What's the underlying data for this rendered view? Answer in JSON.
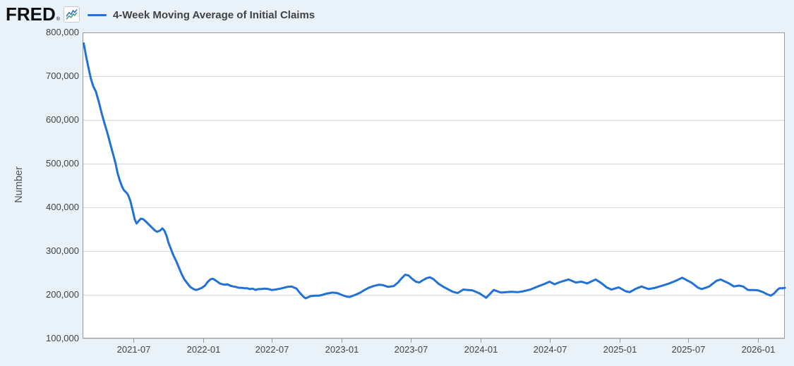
{
  "header": {
    "logo_text": "FRED",
    "registered_mark": "®",
    "logo_icon": "fred-sparkline-icon"
  },
  "legend": {
    "label": "4-Week Moving Average of Initial Claims"
  },
  "colors": {
    "series_line": "#2271d4",
    "background": "#e9f1f9",
    "plot_background": "#ffffff",
    "gridline": "#d6d6d6",
    "plot_border": "#999999",
    "axis_text": "#434343",
    "logo_icon_blue": "#3a6fb5",
    "logo_icon_green": "#3fa184"
  },
  "chart_data": {
    "type": "line",
    "title": "4-Week Moving Average of Initial Claims",
    "xlabel": "",
    "ylabel": "Number",
    "ylim": [
      100000,
      800000
    ],
    "grid": "horizontal",
    "legend_position": "top-left",
    "y_ticks": [
      "800,000",
      "700,000",
      "600,000",
      "500,000",
      "400,000",
      "300,000",
      "200,000",
      "100,000"
    ],
    "x_ticks": [
      "2021-07",
      "2022-01",
      "2022-07",
      "2023-01",
      "2023-07",
      "2024-01",
      "2024-07",
      "2025-01",
      "2025-07",
      "2026-01"
    ],
    "x_range": [
      "2021-02-18",
      "2026-03-12"
    ],
    "series": [
      {
        "name": "4-Week Moving Average of Initial Claims",
        "color": "#2271d4",
        "points": [
          [
            "2021-02-21",
            775000
          ],
          [
            "2021-02-28",
            742000
          ],
          [
            "2021-03-07",
            713000
          ],
          [
            "2021-03-12",
            694000
          ],
          [
            "2021-03-18",
            677000
          ],
          [
            "2021-03-25",
            665000
          ],
          [
            "2021-04-02",
            640000
          ],
          [
            "2021-04-09",
            616000
          ],
          [
            "2021-04-16",
            594000
          ],
          [
            "2021-04-24",
            571000
          ],
          [
            "2021-05-01",
            548000
          ],
          [
            "2021-05-08",
            526000
          ],
          [
            "2021-05-16",
            500000
          ],
          [
            "2021-05-21",
            479000
          ],
          [
            "2021-05-27",
            461000
          ],
          [
            "2021-06-02",
            447000
          ],
          [
            "2021-06-07",
            439000
          ],
          [
            "2021-06-13",
            434000
          ],
          [
            "2021-06-18",
            428000
          ],
          [
            "2021-06-24",
            414000
          ],
          [
            "2021-06-30",
            392000
          ],
          [
            "2021-07-05",
            373000
          ],
          [
            "2021-07-10",
            363000
          ],
          [
            "2021-07-16",
            369000
          ],
          [
            "2021-07-21",
            374000
          ],
          [
            "2021-07-27",
            373000
          ],
          [
            "2021-08-03",
            368000
          ],
          [
            "2021-08-11",
            361000
          ],
          [
            "2021-08-18",
            355000
          ],
          [
            "2021-08-26",
            348000
          ],
          [
            "2021-09-02",
            344000
          ],
          [
            "2021-09-10",
            347000
          ],
          [
            "2021-09-16",
            352000
          ],
          [
            "2021-09-21",
            347000
          ],
          [
            "2021-09-27",
            335000
          ],
          [
            "2021-10-02",
            319000
          ],
          [
            "2021-10-08",
            306000
          ],
          [
            "2021-10-15",
            290000
          ],
          [
            "2021-10-23",
            276000
          ],
          [
            "2021-10-30",
            261000
          ],
          [
            "2021-11-06",
            247000
          ],
          [
            "2021-11-13",
            235000
          ],
          [
            "2021-11-21",
            226000
          ],
          [
            "2021-11-28",
            218000
          ],
          [
            "2021-12-07",
            213000
          ],
          [
            "2021-12-14",
            211000
          ],
          [
            "2021-12-21",
            213000
          ],
          [
            "2021-12-29",
            216000
          ],
          [
            "2022-01-06",
            221000
          ],
          [
            "2022-01-13",
            229000
          ],
          [
            "2022-01-20",
            235000
          ],
          [
            "2022-01-26",
            237000
          ],
          [
            "2022-02-01",
            234000
          ],
          [
            "2022-02-06",
            231000
          ],
          [
            "2022-02-14",
            226000
          ],
          [
            "2022-02-21",
            224000
          ],
          [
            "2022-02-28",
            223000
          ],
          [
            "2022-03-06",
            224000
          ],
          [
            "2022-03-13",
            221000
          ],
          [
            "2022-03-21",
            219000
          ],
          [
            "2022-03-28",
            218000
          ],
          [
            "2022-04-05",
            216000
          ],
          [
            "2022-04-12",
            216000
          ],
          [
            "2022-04-20",
            215000
          ],
          [
            "2022-04-27",
            215000
          ],
          [
            "2022-05-04",
            213000
          ],
          [
            "2022-05-12",
            214000
          ],
          [
            "2022-05-19",
            211000
          ],
          [
            "2022-05-26",
            213000
          ],
          [
            "2022-06-03",
            213000
          ],
          [
            "2022-06-13",
            214000
          ],
          [
            "2022-06-22",
            213000
          ],
          [
            "2022-07-01",
            211000
          ],
          [
            "2022-07-10",
            212000
          ],
          [
            "2022-07-23",
            214000
          ],
          [
            "2022-08-11",
            218000
          ],
          [
            "2022-08-22",
            219000
          ],
          [
            "2022-09-04",
            214000
          ],
          [
            "2022-09-13",
            204000
          ],
          [
            "2022-09-23",
            195000
          ],
          [
            "2022-09-28",
            192000
          ],
          [
            "2022-10-11",
            197000
          ],
          [
            "2022-10-24",
            198000
          ],
          [
            "2022-11-03",
            198000
          ],
          [
            "2022-11-12",
            200000
          ],
          [
            "2022-11-24",
            203000
          ],
          [
            "2022-12-07",
            205000
          ],
          [
            "2022-12-20",
            204000
          ],
          [
            "2022-12-31",
            200000
          ],
          [
            "2023-01-13",
            196000
          ],
          [
            "2023-01-22",
            195000
          ],
          [
            "2023-02-06",
            200000
          ],
          [
            "2023-02-19",
            205000
          ],
          [
            "2023-03-02",
            211000
          ],
          [
            "2023-03-13",
            216000
          ],
          [
            "2023-03-26",
            220000
          ],
          [
            "2023-04-09",
            223000
          ],
          [
            "2023-04-20",
            222000
          ],
          [
            "2023-05-03",
            218000
          ],
          [
            "2023-05-18",
            220000
          ],
          [
            "2023-05-29",
            228000
          ],
          [
            "2023-06-08",
            238000
          ],
          [
            "2023-06-17",
            246000
          ],
          [
            "2023-06-26",
            244000
          ],
          [
            "2023-07-06",
            236000
          ],
          [
            "2023-07-15",
            230000
          ],
          [
            "2023-07-24",
            228000
          ],
          [
            "2023-08-02",
            233000
          ],
          [
            "2023-08-12",
            238000
          ],
          [
            "2023-08-21",
            240000
          ],
          [
            "2023-08-30",
            236000
          ],
          [
            "2023-09-13",
            225000
          ],
          [
            "2023-09-26",
            218000
          ],
          [
            "2023-10-09",
            212000
          ],
          [
            "2023-10-20",
            207000
          ],
          [
            "2023-11-02",
            204000
          ],
          [
            "2023-11-17",
            212000
          ],
          [
            "2023-11-30",
            211000
          ],
          [
            "2023-12-11",
            210000
          ],
          [
            "2023-12-30",
            203000
          ],
          [
            "2024-01-16",
            193000
          ],
          [
            "2024-02-05",
            211000
          ],
          [
            "2024-02-24",
            205000
          ],
          [
            "2024-03-09",
            206000
          ],
          [
            "2024-03-23",
            207000
          ],
          [
            "2024-04-08",
            206000
          ],
          [
            "2024-04-23",
            208000
          ],
          [
            "2024-05-11",
            212000
          ],
          [
            "2024-05-25",
            217000
          ],
          [
            "2024-06-18",
            225000
          ],
          [
            "2024-07-01",
            230000
          ],
          [
            "2024-07-14",
            224000
          ],
          [
            "2024-07-28",
            229000
          ],
          [
            "2024-08-20",
            235000
          ],
          [
            "2024-09-08",
            228000
          ],
          [
            "2024-09-23",
            230000
          ],
          [
            "2024-10-08",
            226000
          ],
          [
            "2024-10-30",
            235000
          ],
          [
            "2024-11-14",
            227000
          ],
          [
            "2024-11-28",
            217000
          ],
          [
            "2024-12-11",
            212000
          ],
          [
            "2024-12-30",
            217000
          ],
          [
            "2025-01-17",
            208000
          ],
          [
            "2025-01-28",
            206000
          ],
          [
            "2025-02-11",
            213000
          ],
          [
            "2025-02-28",
            219000
          ],
          [
            "2025-03-18",
            213000
          ],
          [
            "2025-04-05",
            216000
          ],
          [
            "2025-04-24",
            221000
          ],
          [
            "2025-05-12",
            226000
          ],
          [
            "2025-05-29",
            232000
          ],
          [
            "2025-06-15",
            239000
          ],
          [
            "2025-06-30",
            232000
          ],
          [
            "2025-07-09",
            228000
          ],
          [
            "2025-07-27",
            216000
          ],
          [
            "2025-08-06",
            213000
          ],
          [
            "2025-08-25",
            219000
          ],
          [
            "2025-09-13",
            232000
          ],
          [
            "2025-09-24",
            235000
          ],
          [
            "2025-10-16",
            226000
          ],
          [
            "2025-10-29",
            219000
          ],
          [
            "2025-11-11",
            221000
          ],
          [
            "2025-11-22",
            219000
          ],
          [
            "2025-12-05",
            211000
          ],
          [
            "2025-12-18",
            211000
          ],
          [
            "2026-01-01",
            210000
          ],
          [
            "2026-01-14",
            206000
          ],
          [
            "2026-01-25",
            201000
          ],
          [
            "2026-02-03",
            198000
          ],
          [
            "2026-02-12",
            203000
          ],
          [
            "2026-02-20",
            211000
          ],
          [
            "2026-02-26",
            215000
          ],
          [
            "2026-03-06",
            215000
          ],
          [
            "2026-03-12",
            216000
          ]
        ]
      }
    ]
  }
}
